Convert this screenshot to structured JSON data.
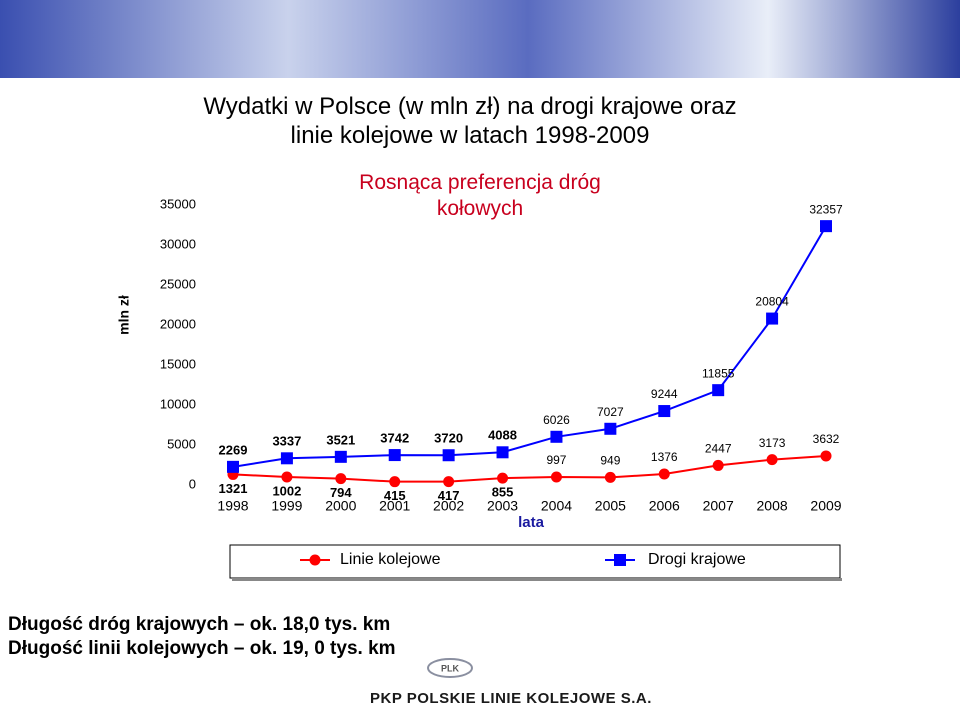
{
  "chart_data": {
    "type": "line",
    "title": "Wydatki w Polsce (w mln zł) na drogi krajowe oraz linie kolejowe w latach 1998-2009",
    "annotation": "Rosnąca preferencja dróg kołowych",
    "y_label": "mln zł",
    "x_label": "lata",
    "categories": [
      "1998",
      "1999",
      "2000",
      "2001",
      "2002",
      "2003",
      "2004",
      "2005",
      "2006",
      "2007",
      "2008",
      "2009"
    ],
    "series": [
      {
        "name": "Linie kolejowe",
        "color": "#ff0000",
        "marker": "circle",
        "values": [
          1321,
          1002,
          794,
          415,
          417,
          855,
          997,
          949,
          1376,
          2447,
          3173,
          3632
        ]
      },
      {
        "name": "Drogi krajowe",
        "color": "#0000ff",
        "marker": "square",
        "values": [
          2269,
          3337,
          3521,
          3742,
          3720,
          4088,
          6026,
          7027,
          9244,
          11855,
          20804,
          32357
        ]
      }
    ],
    "ylim": [
      0,
      35000
    ],
    "yticks": [
      0,
      5000,
      10000,
      15000,
      20000,
      25000,
      30000,
      35000
    ],
    "grid": false
  },
  "notes": [
    "Długość dróg krajowych – ok. 18,0 tys. km",
    "Długość linii kolejowych – ok. 19, 0 tys. km"
  ],
  "footer": {
    "logo": "PLK",
    "company": "PKP POLSKIE LINIE KOLEJOWE S.A."
  }
}
